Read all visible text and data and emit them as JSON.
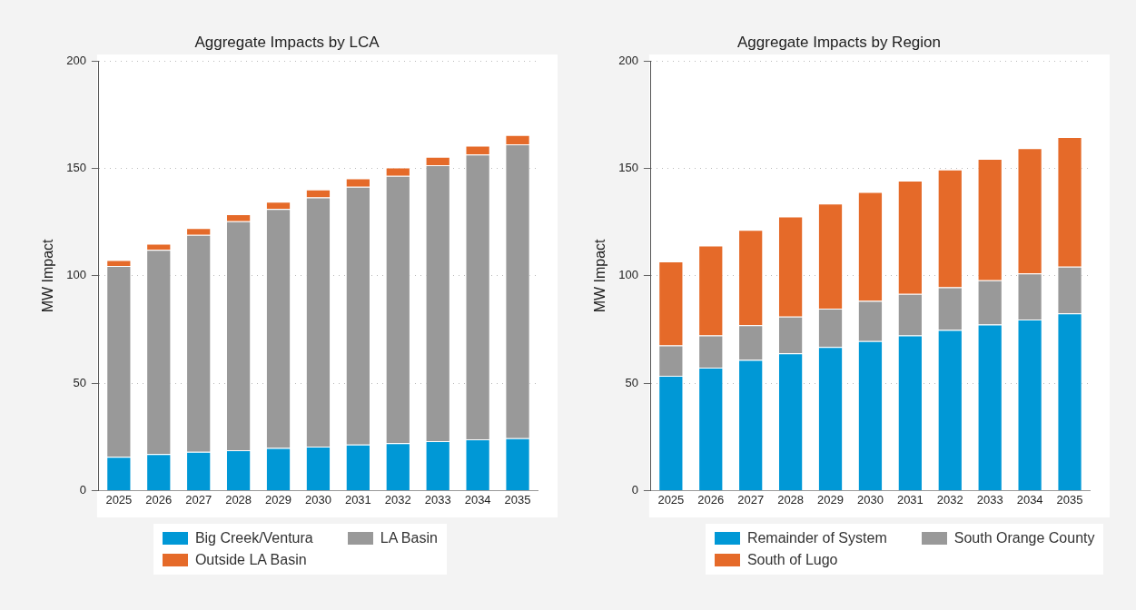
{
  "chart_data": [
    {
      "type": "bar",
      "title": "Aggregate Impacts by LCA",
      "ylabel": "MW Impact",
      "categories": [
        "2025",
        "2026",
        "2027",
        "2028",
        "2029",
        "2030",
        "2031",
        "2032",
        "2033",
        "2034",
        "2035"
      ],
      "stacked": true,
      "ylim": [
        0,
        200
      ],
      "yticks": [
        0,
        50,
        100,
        150,
        200
      ],
      "grid": "y",
      "legend": "bottom",
      "series": [
        {
          "name": "Big Creek/Ventura",
          "color": "#0098d6",
          "values": [
            15.7,
            17.0,
            18.0,
            18.8,
            19.8,
            20.5,
            21.4,
            22.1,
            23.0,
            23.8,
            24.4
          ]
        },
        {
          "name": "LA Basin",
          "color": "#999999",
          "values": [
            88.9,
            95.1,
            101.1,
            106.6,
            111.3,
            116.0,
            120.1,
            124.5,
            128.5,
            132.7,
            136.9
          ]
        },
        {
          "name": "Outside LA Basin",
          "color": "#e56a29",
          "values": [
            2.8,
            2.9,
            3.2,
            3.3,
            3.4,
            3.7,
            3.9,
            3.9,
            4.0,
            4.1,
            4.3
          ]
        }
      ]
    },
    {
      "type": "bar",
      "title": "Aggregate Impacts by Region",
      "ylabel": "MW Impact",
      "categories": [
        "2025",
        "2026",
        "2027",
        "2028",
        "2029",
        "2030",
        "2031",
        "2032",
        "2033",
        "2034",
        "2035"
      ],
      "stacked": true,
      "ylim": [
        0,
        200
      ],
      "yticks": [
        0,
        50,
        100,
        150,
        200
      ],
      "grid": "y",
      "legend": "bottom",
      "series": [
        {
          "name": "Remainder of System",
          "color": "#0098d6",
          "values": [
            53.4,
            57.2,
            60.8,
            63.9,
            66.9,
            69.6,
            72.3,
            74.8,
            77.3,
            79.7,
            82.5
          ]
        },
        {
          "name": "South Orange County",
          "color": "#999999",
          "values": [
            14.2,
            15.1,
            16.2,
            17.1,
            17.8,
            18.7,
            19.3,
            19.9,
            20.7,
            21.4,
            21.8
          ]
        },
        {
          "name": "South of Lugo",
          "color": "#e56a29",
          "values": [
            39.1,
            41.8,
            44.4,
            46.7,
            49.0,
            50.8,
            52.8,
            54.8,
            56.5,
            58.4,
            60.3
          ]
        }
      ]
    }
  ]
}
